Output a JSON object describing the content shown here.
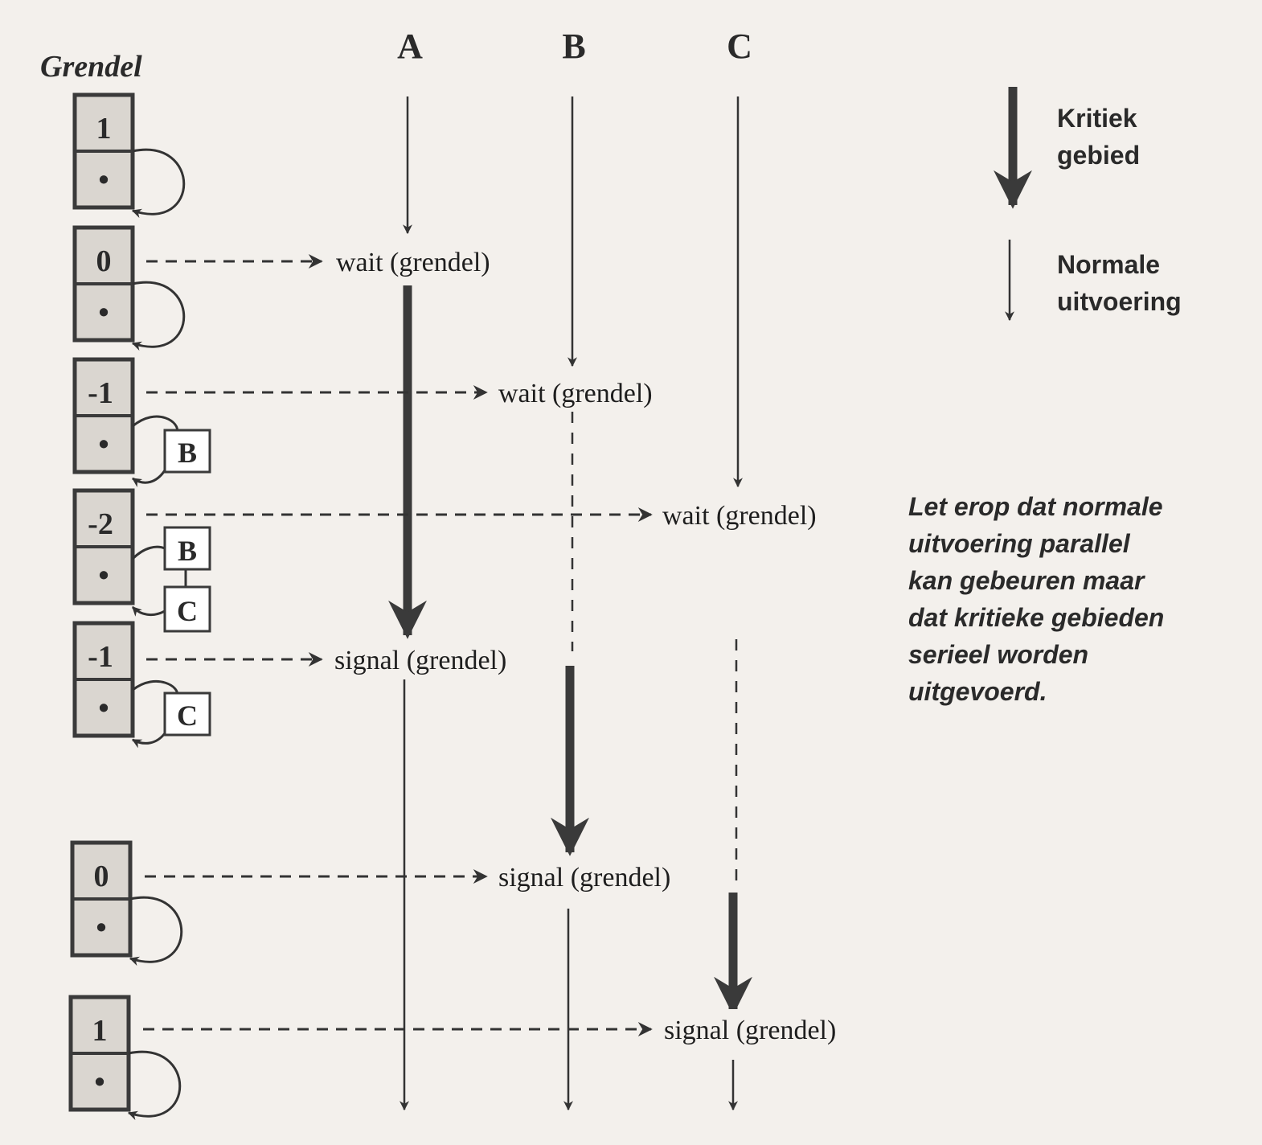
{
  "title": "Grendel",
  "processes": {
    "a": "A",
    "b": "B",
    "c": "C"
  },
  "states": [
    {
      "value": "1",
      "queue": []
    },
    {
      "value": "0",
      "queue": []
    },
    {
      "value": "-1",
      "queue": [
        "B"
      ]
    },
    {
      "value": "-2",
      "queue": [
        "B",
        "C"
      ]
    },
    {
      "value": "-1",
      "queue": [
        "C"
      ]
    },
    {
      "value": "0",
      "queue": []
    },
    {
      "value": "1",
      "queue": []
    }
  ],
  "pointer_symbol": "•",
  "operations": [
    {
      "text": "wait (grendel)"
    },
    {
      "text": "wait (grendel)"
    },
    {
      "text": "wait (grendel)"
    },
    {
      "text": "signal (grendel)"
    },
    {
      "text": "signal (grendel)"
    },
    {
      "text": "signal (grendel)"
    }
  ],
  "legend": {
    "critical_line1": "Kritiek",
    "critical_line2": "gebied",
    "normal_line1": "Normale",
    "normal_line2": "uitvoering"
  },
  "note": [
    "Let erop dat normale",
    "uitvoering parallel",
    "kan gebeuren maar",
    "dat kritieke gebieden",
    "serieel worden",
    "uitgevoerd."
  ]
}
